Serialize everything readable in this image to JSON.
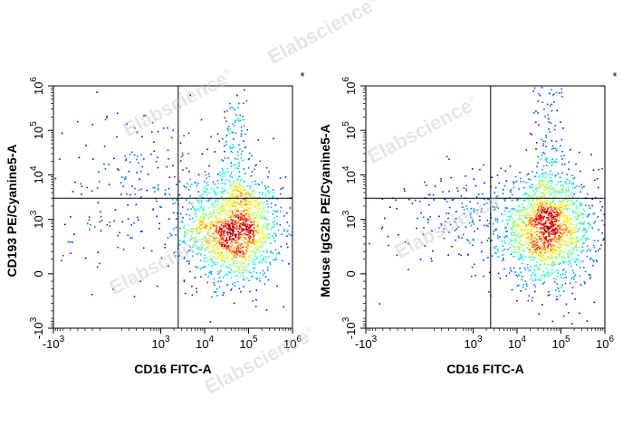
{
  "watermark_text": "Elabscience",
  "watermark_mark": "®",
  "chart_data": [
    {
      "type": "scatter",
      "subtype": "flow-cytometry-density-dot-plot",
      "title": "",
      "xlabel": "CD16 FITC-A",
      "ylabel": "CD193 PE/Cyanine5-A",
      "corner_marker": "*",
      "x_scale": "biexponential",
      "y_scale": "biexponential",
      "xlim": [
        -1000,
        1000000
      ],
      "ylim": [
        -1000,
        1000000
      ],
      "x_ticks": [
        {
          "base": "-10",
          "exp": "3",
          "value": -1000
        },
        {
          "base": "10",
          "exp": "3",
          "value": 1000
        },
        {
          "base": "10",
          "exp": "4",
          "value": 10000
        },
        {
          "base": "10",
          "exp": "5",
          "value": 100000
        },
        {
          "base": "10",
          "exp": "6",
          "value": 1000000
        }
      ],
      "y_ticks": [
        {
          "base": "-10",
          "exp": "3",
          "value": -1000
        },
        {
          "base": "0",
          "exp": "",
          "value": 0
        },
        {
          "base": "10",
          "exp": "3",
          "value": 1000
        },
        {
          "base": "10",
          "exp": "4",
          "value": 10000
        },
        {
          "base": "10",
          "exp": "5",
          "value": 100000
        },
        {
          "base": "10",
          "exp": "6",
          "value": 1000000
        }
      ],
      "gate_x": 2500,
      "gate_y": 3000,
      "grid": false,
      "legend": "none",
      "populations": [
        {
          "x": 45000,
          "y": 600,
          "spread_x": 0.1,
          "spread_y": 0.11,
          "count": 1500,
          "role": "main"
        },
        {
          "x": 48000,
          "y": 4000,
          "spread_x": 0.03,
          "spread_y": 0.45,
          "count": 160,
          "role": "tail"
        },
        {
          "x": 800,
          "y": 13000,
          "spread_x": 0.22,
          "spread_y": 0.13,
          "count": 200,
          "role": "cluster"
        },
        {
          "x": 700,
          "y": 500,
          "spread_x": 0.22,
          "spread_y": 0.09,
          "count": 40,
          "role": "cluster"
        },
        {
          "x": 8000,
          "y": 500,
          "spread_x": 0.45,
          "spread_y": 0.12,
          "count": 90,
          "role": "scatter"
        }
      ]
    },
    {
      "type": "scatter",
      "subtype": "flow-cytometry-density-dot-plot",
      "title": "",
      "xlabel": "CD16 FITC-A",
      "ylabel": "Mouse IgG2b PE/Cyanine5-A",
      "corner_marker": "*",
      "x_scale": "biexponential",
      "y_scale": "biexponential",
      "xlim": [
        -1000,
        1000000
      ],
      "ylim": [
        -1000,
        1000000
      ],
      "x_ticks": [
        {
          "base": "-10",
          "exp": "3",
          "value": -1000
        },
        {
          "base": "10",
          "exp": "3",
          "value": 1000
        },
        {
          "base": "10",
          "exp": "4",
          "value": 10000
        },
        {
          "base": "10",
          "exp": "5",
          "value": 100000
        },
        {
          "base": "10",
          "exp": "6",
          "value": 1000000
        }
      ],
      "y_ticks": [
        {
          "base": "-10",
          "exp": "3",
          "value": -1000
        },
        {
          "base": "0",
          "exp": "",
          "value": 0
        },
        {
          "base": "10",
          "exp": "3",
          "value": 1000
        },
        {
          "base": "10",
          "exp": "4",
          "value": 10000
        },
        {
          "base": "10",
          "exp": "5",
          "value": 100000
        },
        {
          "base": "10",
          "exp": "6",
          "value": 1000000
        }
      ],
      "gate_x": 2500,
      "gate_y": 3000,
      "grid": false,
      "legend": "none",
      "populations": [
        {
          "x": 48000,
          "y": 600,
          "spread_x": 0.1,
          "spread_y": 0.11,
          "count": 1600,
          "role": "main"
        },
        {
          "x": 50000,
          "y": 5000,
          "spread_x": 0.03,
          "spread_y": 0.45,
          "count": 150,
          "role": "tail"
        },
        {
          "x": 850,
          "y": 1200,
          "spread_x": 0.16,
          "spread_y": 0.09,
          "count": 170,
          "role": "cluster"
        },
        {
          "x": 9000,
          "y": 600,
          "spread_x": 0.45,
          "spread_y": 0.12,
          "count": 90,
          "role": "scatter"
        }
      ]
    }
  ]
}
